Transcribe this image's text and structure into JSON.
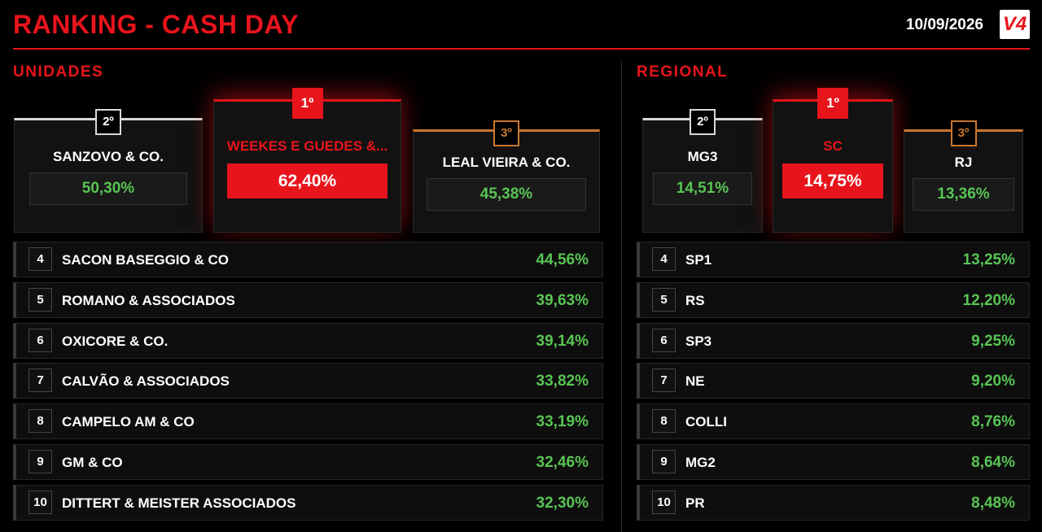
{
  "header": {
    "title": "RANKING - CASH DAY",
    "date": "10/09/2026",
    "logo": "V4"
  },
  "sections": [
    {
      "title": "UNIDADES",
      "podium": [
        {
          "rank": "2º",
          "name": "SANZOVO & CO.",
          "value": "50,30%"
        },
        {
          "rank": "1º",
          "name": "WEEKES E GUEDES &...",
          "value": "62,40%"
        },
        {
          "rank": "3º",
          "name": "LEAL VIEIRA & CO.",
          "value": "45,38%"
        }
      ],
      "list": [
        {
          "rank": "4",
          "name": "SACON BASEGGIO & CO",
          "value": "44,56%"
        },
        {
          "rank": "5",
          "name": "ROMANO & ASSOCIADOS",
          "value": "39,63%"
        },
        {
          "rank": "6",
          "name": "OXICORE & CO.",
          "value": "39,14%"
        },
        {
          "rank": "7",
          "name": "CALVÃO & ASSOCIADOS",
          "value": "33,82%"
        },
        {
          "rank": "8",
          "name": "CAMPELO AM & CO",
          "value": "33,19%"
        },
        {
          "rank": "9",
          "name": "GM & CO",
          "value": "32,46%"
        },
        {
          "rank": "10",
          "name": "DITTERT & MEISTER ASSOCIADOS",
          "value": "32,30%"
        }
      ]
    },
    {
      "title": "REGIONAL",
      "podium": [
        {
          "rank": "2º",
          "name": "MG3",
          "value": "14,51%"
        },
        {
          "rank": "1º",
          "name": "SC",
          "value": "14,75%"
        },
        {
          "rank": "3º",
          "name": "RJ",
          "value": "13,36%"
        }
      ],
      "list": [
        {
          "rank": "4",
          "name": "SP1",
          "value": "13,25%"
        },
        {
          "rank": "5",
          "name": "RS",
          "value": "12,20%"
        },
        {
          "rank": "6",
          "name": "SP3",
          "value": "9,25%"
        },
        {
          "rank": "7",
          "name": "NE",
          "value": "9,20%"
        },
        {
          "rank": "8",
          "name": "COLLI",
          "value": "8,76%"
        },
        {
          "rank": "9",
          "name": "MG2",
          "value": "8,64%"
        },
        {
          "rank": "10",
          "name": "PR",
          "value": "8,48%"
        }
      ]
    }
  ]
}
